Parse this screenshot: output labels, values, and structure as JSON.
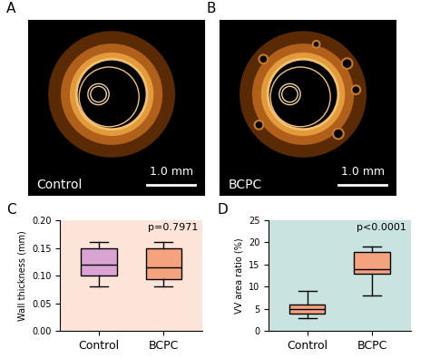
{
  "images": [
    {
      "panel": "A",
      "label": "Control",
      "scale_bar": "1.0 mm"
    },
    {
      "panel": "B",
      "label": "BCPC",
      "scale_bar": "1.0 mm"
    }
  ],
  "chart_data": [
    {
      "type": "box",
      "panel": "C",
      "y_label": "Wall thickness (mm)",
      "categories": [
        "Control",
        "BCPC"
      ],
      "boxes": [
        {
          "low": 0.08,
          "q1": 0.1,
          "median": 0.12,
          "q3": 0.15,
          "high": 0.16
        },
        {
          "low": 0.08,
          "q1": 0.093,
          "median": 0.115,
          "q3": 0.15,
          "high": 0.16
        }
      ],
      "colors": [
        "#d9a3d3",
        "#f5a27e"
      ],
      "annotations": [
        "p=0.7971"
      ],
      "ylim": [
        0,
        0.2
      ],
      "yticks": [
        {
          "value": 0,
          "label": "0.00"
        },
        {
          "value": 0.05,
          "label": "0.05"
        },
        {
          "value": 0.1,
          "label": "0.10"
        },
        {
          "value": 0.15,
          "label": "0.15"
        },
        {
          "value": 0.2,
          "label": "0.20"
        }
      ],
      "grid": false
    },
    {
      "type": "box",
      "panel": "D",
      "y_label": "VV area ratio (%)",
      "categories": [
        "Control",
        "BCPC"
      ],
      "boxes": [
        {
          "low": 3,
          "q1": 4,
          "median": 5,
          "q3": 6,
          "high": 9
        },
        {
          "low": 8,
          "q1": 13,
          "median": 14,
          "q3": 17.8,
          "high": 19
        }
      ],
      "colors": [
        "#f5a27e",
        "#f5a27e"
      ],
      "annotations": [
        "p<0.0001"
      ],
      "ylim": [
        0,
        25
      ],
      "yticks": [
        0,
        5,
        10,
        15,
        20,
        25
      ],
      "grid": false
    }
  ]
}
